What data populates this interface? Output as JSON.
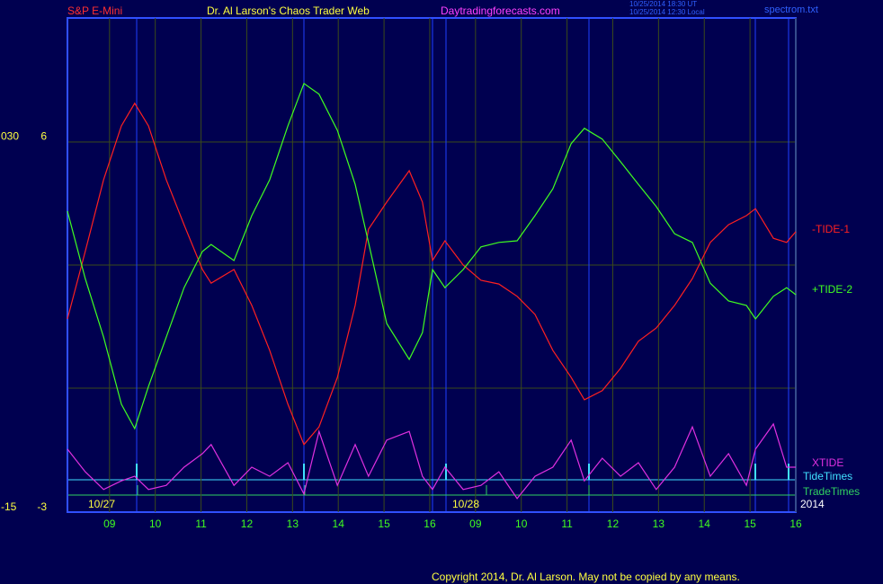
{
  "header": {
    "symbol": "S&P E-Mini",
    "author": "Dr. Al Larson's Chaos Trader Web",
    "site": "Daytradingforecasts.com",
    "timestamps": [
      "10/25/2014 18:30 UT",
      "10/25/2014 12:30 Local"
    ],
    "file": "spectrom.txt"
  },
  "footer": {
    "copyright": "Copyright 2014, Dr. Al Larson. May not be copied by any means."
  },
  "chart_data": {
    "type": "line",
    "x": [
      8.08,
      8.47,
      8.87,
      9.26,
      9.55,
      9.85,
      10.24,
      10.63,
      11.03,
      11.22,
      11.72,
      12.11,
      12.5,
      12.9,
      13.25,
      13.58,
      13.98,
      14.37,
      14.66,
      15.06,
      15.55,
      15.84,
      16.06,
      16.33,
      16.73,
      17.12,
      17.51,
      17.91,
      18.3,
      18.69,
      19.09,
      19.38,
      19.77,
      20.17,
      20.56,
      20.95,
      21.35,
      21.74,
      22.13,
      22.53,
      22.92,
      23.12,
      23.51,
      23.8,
      24.0
    ],
    "series": [
      {
        "name": "-TIDE-1",
        "color": "#ff2020",
        "values": [
          1.69,
          3.33,
          5.07,
          6.38,
          6.93,
          6.38,
          5.07,
          3.98,
          2.89,
          2.56,
          2.89,
          2.02,
          0.93,
          -0.38,
          -1.36,
          -0.93,
          0.27,
          2.02,
          3.87,
          4.53,
          5.29,
          4.53,
          3.11,
          3.59,
          3.0,
          2.63,
          2.54,
          2.24,
          1.8,
          0.93,
          0.27,
          -0.27,
          -0.05,
          0.49,
          1.15,
          1.47,
          2.02,
          2.67,
          3.55,
          3.98,
          4.2,
          4.37,
          3.65,
          3.55,
          3.81
        ]
      },
      {
        "name": "+TIDE-2",
        "color": "#40ff20",
        "values": [
          4.31,
          2.67,
          1.25,
          -0.38,
          -0.97,
          0.05,
          1.25,
          2.45,
          3.33,
          3.5,
          3.11,
          4.2,
          5.07,
          6.38,
          7.41,
          7.15,
          6.27,
          4.96,
          3.55,
          1.58,
          0.71,
          1.36,
          2.89,
          2.45,
          2.89,
          3.44,
          3.55,
          3.59,
          4.2,
          4.85,
          5.95,
          6.32,
          6.06,
          5.51,
          4.96,
          4.42,
          3.76,
          3.55,
          2.56,
          2.13,
          2.02,
          1.69,
          2.24,
          2.45,
          2.28
        ]
      },
      {
        "name": "XTIDE",
        "color": "#e030e0",
        "values": [
          -1.47,
          -2.02,
          -2.45,
          -2.24,
          -2.13,
          -2.45,
          -2.35,
          -1.91,
          -1.58,
          -1.36,
          -2.35,
          -1.91,
          -2.13,
          -1.8,
          -2.56,
          -1.04,
          -2.35,
          -1.36,
          -2.13,
          -1.25,
          -1.04,
          -2.13,
          -2.45,
          -1.91,
          -2.45,
          -2.35,
          -2.02,
          -2.67,
          -2.13,
          -1.91,
          -1.25,
          -2.24,
          -1.69,
          -2.13,
          -1.8,
          -2.45,
          -1.91,
          -0.93,
          -2.13,
          -1.58,
          -2.35,
          -1.47,
          -0.86,
          -1.91,
          -1.91
        ]
      }
    ],
    "markers": [
      {
        "name": "TideTimes",
        "color": "#40e0ff"
      },
      {
        "name": "TradeTimes",
        "color": "#30d060"
      }
    ],
    "xlim": [
      8.08,
      24.0
    ],
    "xticks": [
      {
        "value": 9,
        "label": "09"
      },
      10,
      11,
      12,
      13,
      14,
      15,
      16,
      {
        "value": 17,
        "label": "09"
      },
      {
        "value": 18,
        "label": "10"
      },
      {
        "value": 19,
        "label": "11"
      },
      {
        "value": 20,
        "label": "12"
      },
      {
        "value": 21,
        "label": "13"
      },
      {
        "value": 22,
        "label": "14"
      },
      {
        "value": 23,
        "label": "15"
      },
      {
        "value": 24,
        "label": "16"
      }
    ],
    "ylim": [
      -3,
      9
    ],
    "yticks": [
      -3,
      6
    ],
    "y2lim": [
      -15,
      45
    ],
    "y2ticks": [
      -15,
      {
        "value": 30,
        "label": "030"
      }
    ],
    "dates": [
      "10/27",
      "10/28",
      "2014"
    ],
    "grid": true
  }
}
